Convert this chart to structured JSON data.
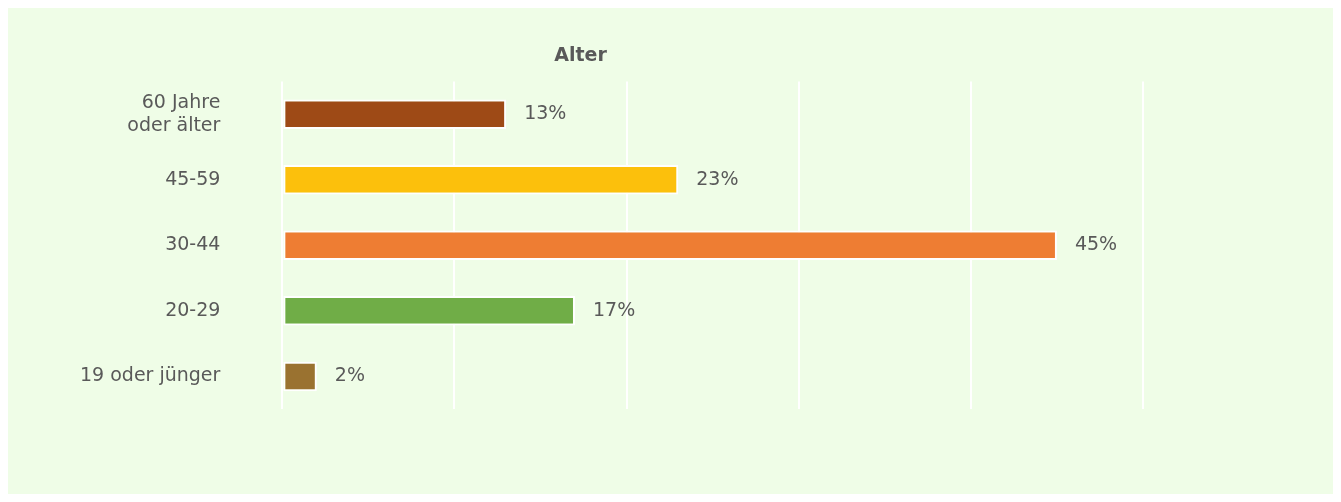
{
  "chart_data": {
    "type": "bar",
    "orientation": "horizontal",
    "title": "Alter",
    "categories": [
      "60 Jahre oder älter",
      "45-59",
      "30-44",
      "20-29",
      "19 oder jünger"
    ],
    "values": [
      13,
      23,
      45,
      17,
      2
    ],
    "colors": [
      "#9e4a16",
      "#fcc00c",
      "#ee7d33",
      "#70ad47",
      "#9a7230"
    ],
    "value_labels": [
      "13%",
      "23%",
      "45%",
      "17%",
      "2%"
    ],
    "xlim": [
      0,
      50
    ],
    "xticks": [
      {
        "value": 0,
        "label": null
      },
      {
        "value": 10,
        "label": null
      },
      {
        "value": 20,
        "label": null
      },
      {
        "value": 30,
        "label": null
      },
      {
        "value": 40,
        "label": null
      },
      {
        "value": 50,
        "label": null
      }
    ],
    "tick_labels": "y",
    "grid": "x",
    "legend": false
  }
}
